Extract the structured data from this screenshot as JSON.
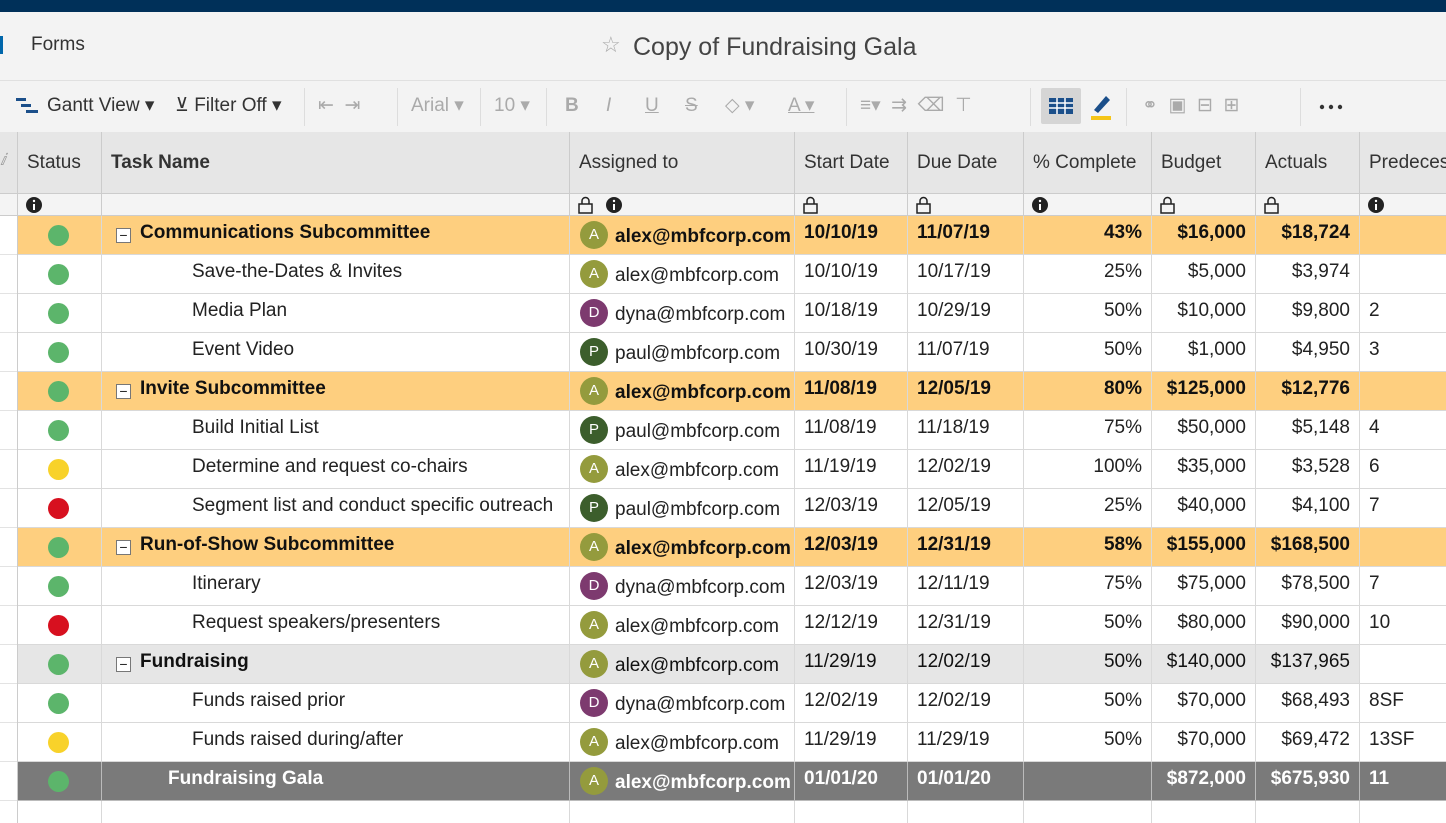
{
  "header": {
    "nav": "Forms",
    "title": "Copy of Fundraising Gala"
  },
  "toolbar": {
    "view": "Gantt View",
    "filter": "Filter Off",
    "font": "Arial",
    "size": "10",
    "format": [
      "B",
      "I",
      "U",
      "S"
    ],
    "text_color": "A"
  },
  "avatar_colors": {
    "A": "#949b3d",
    "D": "#7d3a6f",
    "P": "#3c5e2c"
  },
  "table": {
    "columns": [
      "Status",
      "Task Name",
      "Assigned to",
      "Start Date",
      "Due Date",
      "% Complete",
      "Budget",
      "Actuals",
      "Predeces"
    ],
    "rows": [
      {
        "kind": "group",
        "status": "#5cb56b",
        "task": "Communications Subcommittee",
        "avatar": "A",
        "assigned": "alex@mbfcorp.com",
        "start": "10/10/19",
        "due": "11/07/19",
        "complete": "43%",
        "budget": "$16,000",
        "actuals": "$18,724"
      },
      {
        "kind": "item",
        "status": "#5cb56b",
        "task": "Save-the-Dates & Invites",
        "avatar": "A",
        "assigned": "alex@mbfcorp.com",
        "start": "10/10/19",
        "due": "10/17/19",
        "complete": "25%",
        "budget": "$5,000",
        "actuals": "$3,974"
      },
      {
        "kind": "item",
        "status": "#5cb56b",
        "task": "Media Plan",
        "avatar": "D",
        "assigned": "dyna@mbfcorp.com",
        "start": "10/18/19",
        "due": "10/29/19",
        "complete": "50%",
        "budget": "$10,000",
        "actuals": "$9,800",
        "pred": "2"
      },
      {
        "kind": "item",
        "status": "#5cb56b",
        "task": "Event Video",
        "avatar": "P",
        "assigned": "paul@mbfcorp.com",
        "start": "10/30/19",
        "due": "11/07/19",
        "complete": "50%",
        "budget": "$1,000",
        "actuals": "$4,950",
        "pred": "3"
      },
      {
        "kind": "group",
        "status": "#5cb56b",
        "task": "Invite Subcommittee",
        "avatar": "A",
        "assigned": "alex@mbfcorp.com",
        "start": "11/08/19",
        "due": "12/05/19",
        "complete": "80%",
        "budget": "$125,000",
        "actuals": "$12,776"
      },
      {
        "kind": "item",
        "status": "#5cb56b",
        "task": "Build Initial List",
        "avatar": "P",
        "assigned": "paul@mbfcorp.com",
        "start": "11/08/19",
        "due": "11/18/19",
        "complete": "75%",
        "budget": "$50,000",
        "actuals": "$5,148",
        "pred": "4"
      },
      {
        "kind": "item",
        "status": "#f8d22a",
        "task": "Determine and request co-chairs",
        "avatar": "A",
        "assigned": "alex@mbfcorp.com",
        "start": "11/19/19",
        "due": "12/02/19",
        "complete": "100%",
        "budget": "$35,000",
        "actuals": "$3,528",
        "pred": "6"
      },
      {
        "kind": "item",
        "status": "#d7101f",
        "task": "Segment list and conduct specific outreach",
        "avatar": "P",
        "assigned": "paul@mbfcorp.com",
        "start": "12/03/19",
        "due": "12/05/19",
        "complete": "25%",
        "budget": "$40,000",
        "actuals": "$4,100",
        "pred": "7"
      },
      {
        "kind": "group",
        "status": "#5cb56b",
        "task": "Run-of-Show Subcommittee",
        "avatar": "A",
        "assigned": "alex@mbfcorp.com",
        "start": "12/03/19",
        "due": "12/31/19",
        "complete": "58%",
        "budget": "$155,000",
        "actuals": "$168,500"
      },
      {
        "kind": "item",
        "status": "#5cb56b",
        "task": "Itinerary",
        "avatar": "D",
        "assigned": "dyna@mbfcorp.com",
        "start": "12/03/19",
        "due": "12/11/19",
        "complete": "75%",
        "budget": "$75,000",
        "actuals": "$78,500",
        "pred": "7"
      },
      {
        "kind": "item",
        "status": "#d7101f",
        "task": "Request speakers/presenters",
        "avatar": "A",
        "assigned": "alex@mbfcorp.com",
        "start": "12/12/19",
        "due": "12/31/19",
        "complete": "50%",
        "budget": "$80,000",
        "actuals": "$90,000",
        "pred": "10"
      },
      {
        "kind": "subgroup",
        "status": "#5cb56b",
        "task": "Fundraising",
        "avatar": "A",
        "assigned": "alex@mbfcorp.com",
        "start": "11/29/19",
        "due": "12/02/19",
        "complete": "50%",
        "budget": "$140,000",
        "actuals": "$137,965"
      },
      {
        "kind": "item",
        "status": "#5cb56b",
        "task": "Funds raised prior",
        "avatar": "D",
        "assigned": "dyna@mbfcorp.com",
        "start": "12/02/19",
        "due": "12/02/19",
        "complete": "50%",
        "budget": "$70,000",
        "actuals": "$68,493",
        "pred": "8SF"
      },
      {
        "kind": "item",
        "status": "#f8d22a",
        "task": "Funds raised during/after",
        "avatar": "A",
        "assigned": "alex@mbfcorp.com",
        "start": "11/29/19",
        "due": "11/29/19",
        "complete": "50%",
        "budget": "$70,000",
        "actuals": "$69,472",
        "pred": "13SF"
      },
      {
        "kind": "total",
        "status": "#5cb56b",
        "task": "Fundraising Gala",
        "avatar": "A",
        "assigned": "alex@mbfcorp.com",
        "start": "01/01/20",
        "due": "01/01/20",
        "budget": "$872,000",
        "actuals": "$675,930",
        "pred": "11"
      }
    ]
  }
}
